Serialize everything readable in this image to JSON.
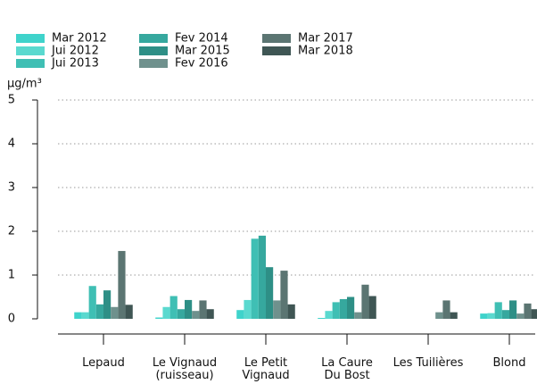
{
  "chart_data": {
    "type": "bar",
    "y_label": "µg/m³",
    "categories": [
      "Lepaud",
      "Le Vignaud\n(ruisseau)",
      "Le Petit\nVignaud",
      "La Caure\nDu Bost",
      "Les Tuilières",
      "Blond"
    ],
    "series": [
      {
        "name": "Mar 2012",
        "color": "#3fd3cb",
        "values": [
          0.15,
          0.03,
          0.2,
          0.02,
          null,
          0.12
        ]
      },
      {
        "name": "Jui 2012",
        "color": "#5ad9cf",
        "values": [
          0.15,
          0.27,
          0.43,
          0.18,
          null,
          0.13
        ]
      },
      {
        "name": "Jui 2013",
        "color": "#3fbfb4",
        "values": [
          0.75,
          0.52,
          1.83,
          0.38,
          null,
          0.38
        ]
      },
      {
        "name": "Fev 2014",
        "color": "#36a89e",
        "values": [
          0.33,
          0.22,
          1.9,
          0.45,
          null,
          0.2
        ]
      },
      {
        "name": "Mar 2015",
        "color": "#2e8f86",
        "values": [
          0.65,
          0.43,
          1.18,
          0.5,
          null,
          0.42
        ]
      },
      {
        "name": "Fev 2016",
        "color": "#6f918d",
        "values": [
          0.27,
          0.18,
          0.42,
          0.15,
          0.15,
          0.12
        ]
      },
      {
        "name": "Mar 2017",
        "color": "#5b7572",
        "values": [
          1.55,
          0.42,
          1.1,
          0.78,
          0.42,
          0.35
        ]
      },
      {
        "name": "Mar 2018",
        "color": "#3f5654",
        "values": [
          0.32,
          0.22,
          0.33,
          0.52,
          0.15,
          0.22
        ]
      }
    ],
    "ylim": [
      0,
      5
    ],
    "yticks": [
      0,
      1,
      2,
      3,
      4,
      5
    ],
    "grid": true
  }
}
